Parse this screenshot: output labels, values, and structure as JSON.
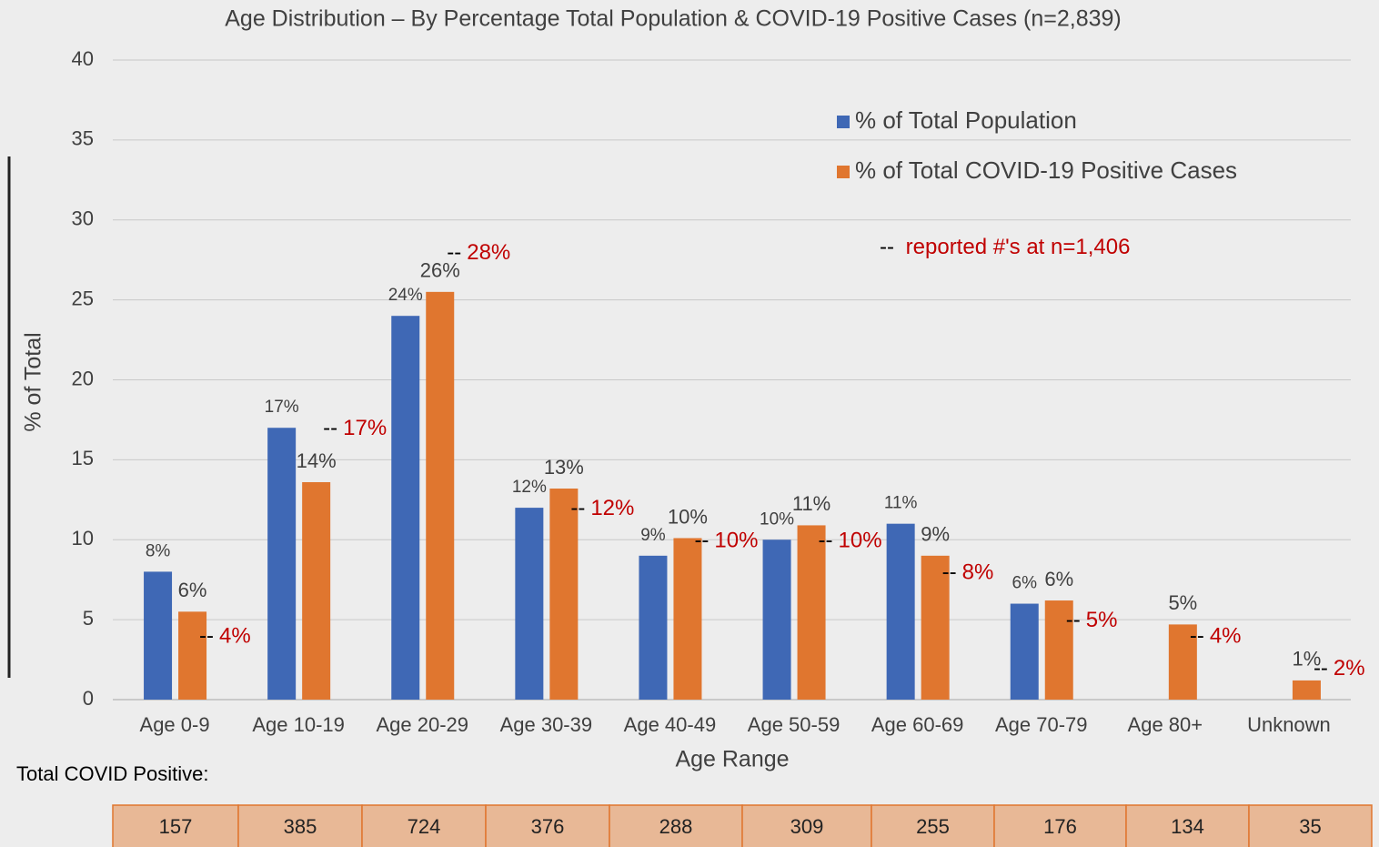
{
  "chart_data": {
    "type": "bar",
    "title": "Age Distribution – By Percentage Total Population & COVID-19 Positive Cases (n=2,839)",
    "x_label": "Age Range",
    "y_label": "% of Total",
    "categories": [
      "Age 0-9",
      "Age 10-19",
      "Age 20-29",
      "Age 30-39",
      "Age 40-49",
      "Age 50-59",
      "Age 60-69",
      "Age 70-79",
      "Age 80+",
      "Unknown"
    ],
    "series": [
      {
        "name": "% of Total Population",
        "color": "#3f68b5",
        "values": [
          8,
          17,
          24,
          12,
          9,
          10,
          11,
          6,
          null,
          null
        ],
        "value_labels": [
          "8%",
          "17%",
          "24%",
          "12%",
          "9%",
          "10%",
          "11%",
          "6%",
          null,
          null
        ]
      },
      {
        "name": "% of Total COVID-19 Positive Cases",
        "color": "#e0762f",
        "values": [
          5.5,
          13.6,
          25.5,
          13.2,
          10.1,
          10.9,
          9.0,
          6.2,
          4.7,
          1.2
        ],
        "value_labels": [
          "6%",
          "14%",
          "26%",
          "13%",
          "10%",
          "11%",
          "9%",
          "6%",
          "5%",
          "1%"
        ]
      }
    ],
    "reported": {
      "marker": "--",
      "note": "reported #'s at n=1,406",
      "color": "#c00000",
      "values": [
        4,
        17,
        28,
        12,
        10,
        10,
        8,
        5,
        4,
        2
      ],
      "value_labels": [
        "4%",
        "17%",
        "28%",
        "12%",
        "10%",
        "10%",
        "8%",
        "5%",
        "4%",
        "2%"
      ]
    },
    "totals": {
      "label": "Total COVID Positive:",
      "values": [
        157,
        385,
        724,
        376,
        288,
        309,
        255,
        176,
        134,
        35
      ]
    },
    "ylim": [
      0,
      40
    ],
    "yticks": [
      0,
      5,
      10,
      15,
      20,
      25,
      30,
      35,
      40
    ],
    "grid": true,
    "legend": "upper right"
  }
}
